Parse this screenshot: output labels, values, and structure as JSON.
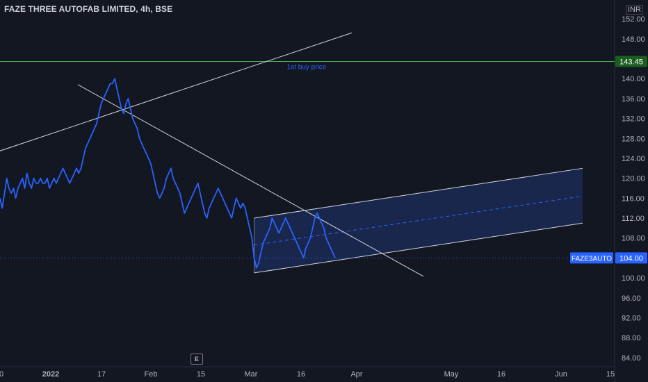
{
  "header": {
    "title": "FAZE THREE AUTOFAB LIMITED, 4h, BSE",
    "currency": "INR"
  },
  "events_badge": "E",
  "colors": {
    "background": "#131722",
    "price_line": "#2962ff",
    "channel_fill": "#1e2d5c",
    "trendline": "#d1d4dc",
    "buy_line": "#4caf50",
    "current_price_bg": "#2962ff",
    "buy_price_bg": "#1b5e20",
    "annotation": "#2962ff"
  },
  "annotations": {
    "buy_label": "1st buy price",
    "buy_price": "143.45",
    "symbol": "FAZE3AUTO",
    "current_price": "104.00"
  },
  "chart_data": {
    "type": "line",
    "title": "",
    "series": [
      {
        "name": "FAZE3AUTO",
        "x": [
          0,
          1,
          2,
          3,
          4,
          5,
          6,
          7,
          8,
          9,
          10,
          11,
          12,
          13,
          14,
          15,
          16,
          17,
          18,
          19,
          20,
          21,
          22,
          23,
          24,
          25,
          26,
          27,
          28,
          29,
          30,
          31,
          32,
          33,
          34,
          35,
          36,
          37,
          38,
          39,
          40,
          41,
          42,
          43,
          44,
          45,
          46,
          47,
          48,
          49,
          50,
          51,
          52,
          53,
          54,
          55,
          56,
          57,
          58,
          59,
          60,
          61,
          62,
          63,
          64,
          65,
          66,
          67,
          68,
          69,
          70,
          71,
          72,
          73,
          74,
          75,
          76,
          77,
          78,
          79,
          80,
          81,
          82,
          83,
          84,
          85,
          86,
          87,
          88,
          89,
          90,
          91,
          92,
          93,
          94,
          95,
          96,
          97,
          98,
          99,
          100,
          101,
          102,
          103,
          104,
          105,
          106,
          107,
          108,
          109,
          110,
          111,
          112,
          113,
          114,
          115,
          116,
          117,
          118,
          119,
          120,
          121,
          122,
          123,
          124,
          125,
          126,
          127,
          128,
          129,
          130,
          131,
          132,
          133,
          134,
          135,
          136,
          137,
          138,
          139,
          140,
          141,
          142,
          143,
          144,
          145,
          146,
          147,
          148,
          149
        ],
        "values": [
          116,
          114,
          117,
          120,
          118,
          117,
          118,
          116,
          118,
          119,
          120,
          118,
          121,
          119,
          118,
          120,
          119,
          119,
          120,
          119,
          119,
          120,
          118,
          119,
          120,
          119,
          120,
          121,
          122,
          121,
          120,
          119,
          120,
          121,
          122,
          121,
          122,
          124,
          126,
          127,
          128,
          129,
          130,
          131,
          133,
          135,
          136,
          137,
          138,
          139,
          139,
          140,
          138,
          136,
          134,
          133,
          135,
          136,
          134,
          132,
          131,
          130,
          128,
          127,
          126,
          125,
          124,
          123,
          121,
          119,
          117,
          116,
          117,
          118,
          120,
          121,
          122,
          120,
          119,
          118,
          117,
          115,
          113,
          114,
          115,
          116,
          117,
          118,
          119,
          117,
          115,
          113,
          112,
          114,
          115,
          116,
          117,
          118,
          117,
          116,
          115,
          114,
          113,
          112,
          114,
          116,
          115,
          114,
          115,
          114,
          112,
          110,
          108,
          104,
          102,
          103,
          105,
          107,
          108,
          109,
          110,
          112,
          111,
          110,
          109,
          110,
          111,
          112,
          111,
          110,
          109,
          108,
          107,
          106,
          105,
          104,
          106,
          107,
          108,
          110,
          112,
          113,
          112,
          111,
          110,
          108,
          107,
          106,
          105,
          104
        ],
        "x_min_label": 0,
        "x_max_label": 149
      }
    ],
    "x_tick_labels": [
      "0",
      "2022",
      "17",
      "Feb",
      "15",
      "Mar",
      "16",
      "Apr",
      "May",
      "16",
      "Jun",
      "15"
    ],
    "y_tick_labels": [
      "152.00",
      "148.00",
      "144.00",
      "140.00",
      "136.00",
      "132.00",
      "128.00",
      "124.00",
      "120.00",
      "116.00",
      "112.00",
      "108.00",
      "104.00",
      "100.00",
      "96.00",
      "92.00",
      "88.00",
      "84.00"
    ],
    "ylim": [
      83,
      153
    ],
    "grid": false,
    "drawings": {
      "buy_line_price": 143.45,
      "current_price": 104.0,
      "regression_channel": {
        "start_index": 113,
        "upper_start": 112.0,
        "mid_start": 106.6,
        "lower_start": 101.0,
        "upper_end": 122.0,
        "mid_end": 116.4,
        "lower_end": 111.0
      },
      "trendline_up": {
        "start_price": 125.5,
        "end_price": 149.2
      },
      "trendline_down": {
        "start_price": 138.8,
        "end_price": 100.3
      }
    }
  }
}
